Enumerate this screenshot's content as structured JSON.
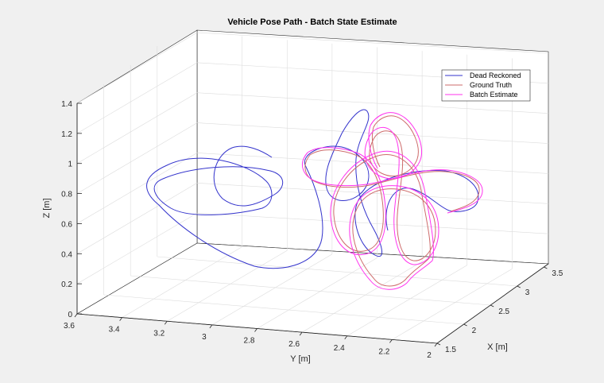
{
  "chart_data": {
    "type": "line3d",
    "title": "Vehicle Pose Path - Batch State Estimate",
    "xlabel": "X [m]",
    "ylabel": "Y [m]",
    "zlabel": "Z [m]",
    "xlim": [
      1.5,
      3.5
    ],
    "ylim": [
      2,
      3.6
    ],
    "zlim": [
      0,
      1.4
    ],
    "xticks": [
      "1.5",
      "2",
      "2.5",
      "3",
      "3.5"
    ],
    "yticks": [
      "2",
      "2.2",
      "2.4",
      "2.6",
      "2.8",
      "3",
      "3.2",
      "3.4",
      "3.6"
    ],
    "zticks": [
      "0",
      "0.2",
      "0.4",
      "0.6",
      "0.8",
      "1",
      "1.2",
      "1.4"
    ],
    "grid": true,
    "legend_position": "top-right",
    "series": [
      {
        "name": "Dead Reckoned",
        "color": "#3333cc"
      },
      {
        "name": "Ground Truth",
        "color": "#cd6b6b"
      },
      {
        "name": "Batch Estimate",
        "color": "#ff33ee"
      }
    ]
  },
  "colors": {
    "background": "#f0f0f0",
    "axes_face": "#ffffff",
    "grid": "#dcdcdc",
    "axis_line": "#262626"
  }
}
